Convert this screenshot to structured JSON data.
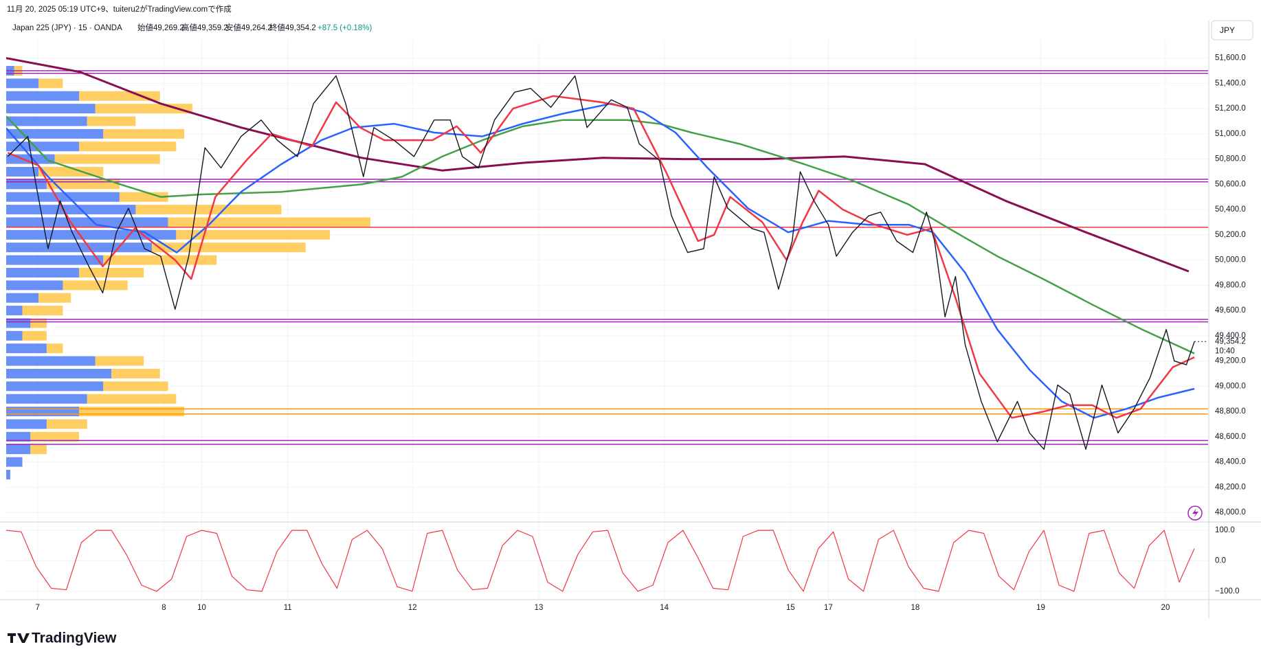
{
  "header": {
    "created": "11月 20, 2025 05:19 UTC+9、tuiteru2がTradingView.comで作成",
    "symbol": "Japan 225 (JPY) · 15 · OANDA",
    "open": "始値49,269.2",
    "high": "高値49,359.2",
    "low": "安値49,264.2",
    "close": "終値49,354.2",
    "change": "+87.5 (+0.18%)"
  },
  "currency": "JPY",
  "logo": "TradingView",
  "chart_data": [
    {
      "type": "line",
      "xlim": [
        0,
        1494
      ],
      "xticks": [
        {
          "value": 39,
          "label": "7"
        },
        {
          "value": 196,
          "label": "8"
        },
        {
          "value": 243,
          "label": "10"
        },
        {
          "value": 350,
          "label": "11"
        },
        {
          "value": 505,
          "label": "12"
        },
        {
          "value": 662,
          "label": "13"
        },
        {
          "value": 818,
          "label": "14"
        },
        {
          "value": 975,
          "label": "15"
        },
        {
          "value": 1022,
          "label": "17"
        },
        {
          "value": 1130,
          "label": "18"
        },
        {
          "value": 1286,
          "label": "19"
        },
        {
          "value": 1441,
          "label": "20"
        }
      ],
      "ylim": [
        47935,
        51745
      ],
      "yticks": [
        {
          "value": 48000,
          "label": "48,000.0"
        },
        {
          "value": 48200,
          "label": "48,200.0"
        },
        {
          "value": 48400,
          "label": "48,400.0"
        },
        {
          "value": 48600,
          "label": "48,600.0"
        },
        {
          "value": 48800,
          "label": "48,800.0"
        },
        {
          "value": 49000,
          "label": "49,000.0"
        },
        {
          "value": 49200,
          "label": "49,200.0"
        },
        {
          "value": 49400,
          "label": "49,400.0"
        },
        {
          "value": 49600,
          "label": "49,600.0"
        },
        {
          "value": 49800,
          "label": "49,800.0"
        },
        {
          "value": 50000,
          "label": "50,000.0"
        },
        {
          "value": 50200,
          "label": "50,200.0"
        },
        {
          "value": 50400,
          "label": "50,400.0"
        },
        {
          "value": 50600,
          "label": "50,600.0"
        },
        {
          "value": 50800,
          "label": "50,800.0"
        },
        {
          "value": 51000,
          "label": "51,000.0"
        },
        {
          "value": 51200,
          "label": "51,200.0"
        },
        {
          "value": 51400,
          "label": "51,400.0"
        },
        {
          "value": 51600,
          "label": "51,600.0"
        }
      ],
      "grid": true,
      "last_price": {
        "value": 49354.2,
        "label": "49,354.2"
      },
      "countdown": "10:40",
      "hlines": [
        {
          "value": 51500,
          "color": "#9c27b0"
        },
        {
          "value": 51480,
          "color": "#9c27b0"
        },
        {
          "value": 50640,
          "color": "#9c27b0"
        },
        {
          "value": 50620,
          "color": "#9c27b0"
        },
        {
          "value": 49530,
          "color": "#9c27b0"
        },
        {
          "value": 49510,
          "color": "#9c27b0"
        },
        {
          "value": 48570,
          "color": "#9c27b0"
        },
        {
          "value": 48540,
          "color": "#9c27b0"
        },
        {
          "value": 50260,
          "color": "#f23645"
        },
        {
          "value": 48820,
          "color": "#ff9800"
        },
        {
          "value": 48780,
          "color": "#ff9800"
        }
      ],
      "volume_profile": {
        "up_color": "#4f7cf6",
        "down_color": "#ffc548",
        "prices": [
          51500,
          51400,
          51300,
          51200,
          51100,
          51000,
          50900,
          50800,
          50700,
          50600,
          50500,
          50400,
          50300,
          50200,
          50100,
          50000,
          49900,
          49800,
          49700,
          49600,
          49500,
          49400,
          49300,
          49200,
          49100,
          49000,
          48900,
          48800,
          48700,
          48600,
          48500,
          48400,
          48300
        ],
        "up": [
          10,
          40,
          90,
          110,
          100,
          120,
          90,
          60,
          40,
          50,
          140,
          160,
          200,
          210,
          180,
          120,
          90,
          70,
          40,
          20,
          30,
          20,
          50,
          110,
          130,
          120,
          100,
          90,
          50,
          30,
          30,
          20,
          5
        ],
        "down": [
          10,
          30,
          100,
          120,
          60,
          100,
          120,
          130,
          80,
          90,
          60,
          180,
          250,
          190,
          190,
          140,
          80,
          80,
          40,
          50,
          20,
          30,
          20,
          60,
          60,
          80,
          110,
          130,
          50,
          60,
          20,
          0,
          0
        ]
      },
      "series": [
        {
          "color": "#880e4f",
          "width": 3,
          "x": [
            0,
            92,
            192,
            292,
            392,
            442,
            542,
            642,
            742,
            842,
            942,
            1042,
            1142,
            1242,
            1342,
            1470
          ],
          "values": [
            51600,
            51490,
            51240,
            51050,
            50890,
            50810,
            50710,
            50770,
            50810,
            50800,
            50800,
            50820,
            50760,
            50470,
            50220,
            49910
          ]
        },
        {
          "color": "#43a047",
          "width": 2.5,
          "x": [
            0,
            52,
            142,
            192,
            242,
            342,
            442,
            492,
            542,
            592,
            642,
            692,
            772,
            812,
            852,
            912,
            992,
            1052,
            1122,
            1172,
            1232,
            1292,
            1352,
            1412,
            1477
          ],
          "values": [
            51140,
            50790,
            50600,
            50500,
            50520,
            50540,
            50600,
            50660,
            50820,
            50950,
            51060,
            51110,
            51110,
            51080,
            51010,
            50920,
            50760,
            50630,
            50440,
            50250,
            50030,
            49840,
            49640,
            49450,
            49260
          ]
        },
        {
          "color": "#2962ff",
          "width": 2.5,
          "x": [
            0,
            52,
            112,
            172,
            212,
            252,
            292,
            342,
            392,
            432,
            482,
            532,
            592,
            642,
            692,
            752,
            792,
            832,
            872,
            922,
            972,
            1022,
            1072,
            1122,
            1152,
            1192,
            1232,
            1272,
            1312,
            1352,
            1392,
            1432,
            1477
          ],
          "values": [
            51046,
            50660,
            50280,
            50220,
            50060,
            50280,
            50540,
            50760,
            50950,
            51050,
            51080,
            51010,
            50980,
            51080,
            51160,
            51240,
            51170,
            51010,
            50730,
            50410,
            50220,
            50310,
            50280,
            50280,
            50220,
            49900,
            49450,
            49130,
            48880,
            48750,
            48820,
            48910,
            48980
          ]
        },
        {
          "color": "#f23645",
          "width": 2.5,
          "x": [
            2,
            40,
            80,
            120,
            160,
            210,
            230,
            260,
            300,
            330,
            380,
            410,
            440,
            470,
            530,
            560,
            590,
            630,
            680,
            740,
            780,
            820,
            860,
            880,
            900,
            940,
            970,
            990,
            1010,
            1040,
            1080,
            1120,
            1150,
            1180,
            1210,
            1250,
            1290,
            1320,
            1350,
            1380,
            1410,
            1450,
            1477
          ],
          "values": [
            50850,
            50750,
            50300,
            49950,
            50250,
            50000,
            49850,
            50500,
            50800,
            51000,
            50900,
            51250,
            51050,
            50950,
            50950,
            51060,
            50850,
            51200,
            51300,
            51250,
            51200,
            50700,
            50150,
            50200,
            50500,
            50300,
            50000,
            50300,
            50550,
            50400,
            50280,
            50200,
            50250,
            49700,
            49100,
            48750,
            48800,
            48850,
            48850,
            48750,
            48820,
            49150,
            49230
          ]
        },
        {
          "color": "#131722",
          "width": 1.4,
          "x": [
            2,
            27,
            37,
            52,
            67,
            82,
            102,
            120,
            137,
            152,
            172,
            192,
            210,
            227,
            247,
            267,
            292,
            317,
            337,
            362,
            382,
            410,
            422,
            444,
            457,
            482,
            507,
            532,
            552,
            567,
            587,
            607,
            632,
            652,
            677,
            707,
            722,
            752,
            772,
            787,
            812,
            827,
            847,
            867,
            880,
            897,
            927,
            942,
            960,
            977,
            987,
            1004,
            1022,
            1032,
            1052,
            1072,
            1087,
            1107,
            1127,
            1144,
            1154,
            1167,
            1180,
            1192,
            1212,
            1232,
            1257,
            1272,
            1290,
            1307,
            1322,
            1342,
            1362,
            1382,
            1402,
            1422,
            1442,
            1452,
            1467,
            1477
          ],
          "values": [
            50820,
            50980,
            50600,
            50090,
            50470,
            50220,
            49960,
            49740,
            50220,
            50410,
            50090,
            50030,
            49610,
            50030,
            50890,
            50730,
            50980,
            51110,
            50950,
            50820,
            51240,
            51460,
            51240,
            50660,
            51050,
            50950,
            50820,
            51110,
            51110,
            50820,
            50730,
            51110,
            51330,
            51360,
            51210,
            51460,
            51050,
            51270,
            51210,
            50920,
            50790,
            50350,
            50060,
            50090,
            50660,
            50410,
            50250,
            50220,
            49770,
            50150,
            50700,
            50470,
            50280,
            50030,
            50220,
            50350,
            50380,
            50150,
            50060,
            50380,
            50150,
            49550,
            49870,
            49330,
            48880,
            48560,
            48880,
            48630,
            48500,
            49010,
            48940,
            48500,
            49010,
            48630,
            48820,
            49070,
            49450,
            49200,
            49170,
            49354.2
          ]
        }
      ]
    },
    {
      "type": "oscillator",
      "ylim": [
        -125,
        125
      ],
      "yticks": [
        {
          "value": 100,
          "label": "100.0"
        },
        {
          "value": 0,
          "label": "0.0"
        },
        {
          "value": -100,
          "label": "−100.0"
        }
      ],
      "color": "#f23645",
      "values": [
        100,
        95,
        -20,
        -90,
        -95,
        60,
        100,
        100,
        20,
        -80,
        -100,
        -60,
        80,
        100,
        90,
        -50,
        -95,
        -100,
        30,
        100,
        100,
        -10,
        -90,
        70,
        100,
        40,
        -85,
        -100,
        90,
        100,
        -30,
        -95,
        -90,
        50,
        100,
        80,
        -70,
        -100,
        20,
        95,
        100,
        -40,
        -100,
        -80,
        60,
        100,
        10,
        -90,
        -95,
        80,
        100,
        100,
        -30,
        -100,
        40,
        95,
        -60,
        -100,
        70,
        100,
        -20,
        -90,
        -100,
        60,
        100,
        90,
        -50,
        -95,
        30,
        100,
        -80,
        -100,
        90,
        100,
        -40,
        -90,
        50,
        100,
        -70,
        40
      ]
    }
  ]
}
